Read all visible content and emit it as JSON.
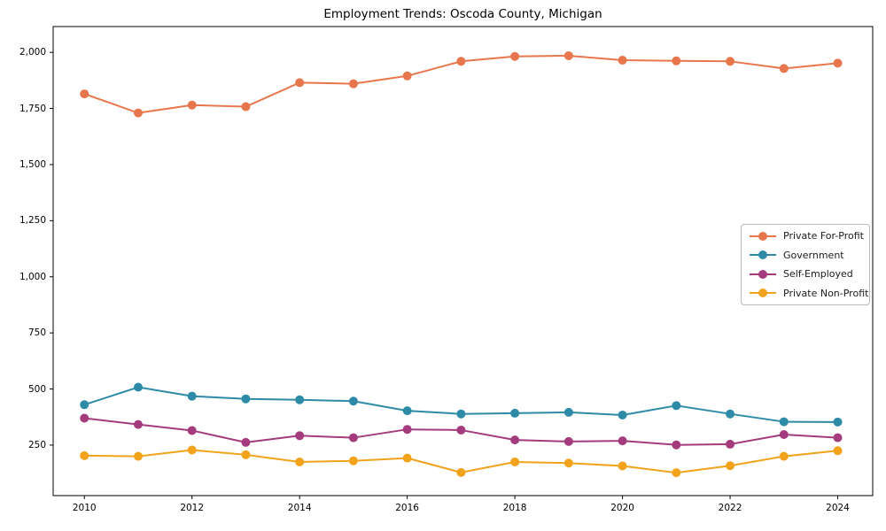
{
  "chart_data": {
    "type": "line",
    "title": "Employment Trends: Oscoda County, Michigan",
    "xlabel": "",
    "ylabel": "",
    "grid": false,
    "legend_position": "center-right",
    "marker": "circle",
    "x": [
      2010,
      2011,
      2012,
      2013,
      2014,
      2015,
      2016,
      2017,
      2018,
      2019,
      2020,
      2021,
      2022,
      2023,
      2024
    ],
    "x_ticks": [
      2010,
      2012,
      2014,
      2016,
      2018,
      2020,
      2022,
      2024
    ],
    "x_tick_labels": [
      "2010",
      "2012",
      "2014",
      "2016",
      "2018",
      "2020",
      "2022",
      "2024"
    ],
    "y_ticks": [
      250,
      500,
      750,
      1000,
      1250,
      1500,
      1750,
      2000
    ],
    "y_tick_labels": [
      "250",
      "500",
      "750",
      "1,000",
      "1,250",
      "1,500",
      "1,750",
      "2,000"
    ],
    "xlim": [
      2009.42,
      2024.65
    ],
    "ylim": [
      25,
      2115
    ],
    "series": [
      {
        "name": "Private For-Profit",
        "color": "#E8764C",
        "values": [
          1815,
          1730,
          1765,
          1758,
          1865,
          1860,
          1895,
          1960,
          1982,
          1985,
          1965,
          1962,
          1960,
          1928,
          1952
        ]
      },
      {
        "name": "Government",
        "color": "#2E8BA8",
        "values": [
          430,
          508,
          468,
          456,
          452,
          446,
          403,
          389,
          392,
          396,
          384,
          426,
          389,
          354,
          353
        ]
      },
      {
        "name": "Self-Employed",
        "color": "#A33B7D",
        "values": [
          370,
          342,
          315,
          262,
          292,
          283,
          320,
          317,
          273,
          266,
          269,
          251,
          254,
          297,
          283
        ]
      },
      {
        "name": "Private Non-Profit",
        "color": "#F2A31B",
        "values": [
          203,
          200,
          228,
          207,
          175,
          180,
          192,
          128,
          175,
          170,
          157,
          127,
          158,
          200,
          225
        ]
      }
    ],
    "axis_color": "#000000",
    "background_color": "#ffffff"
  }
}
